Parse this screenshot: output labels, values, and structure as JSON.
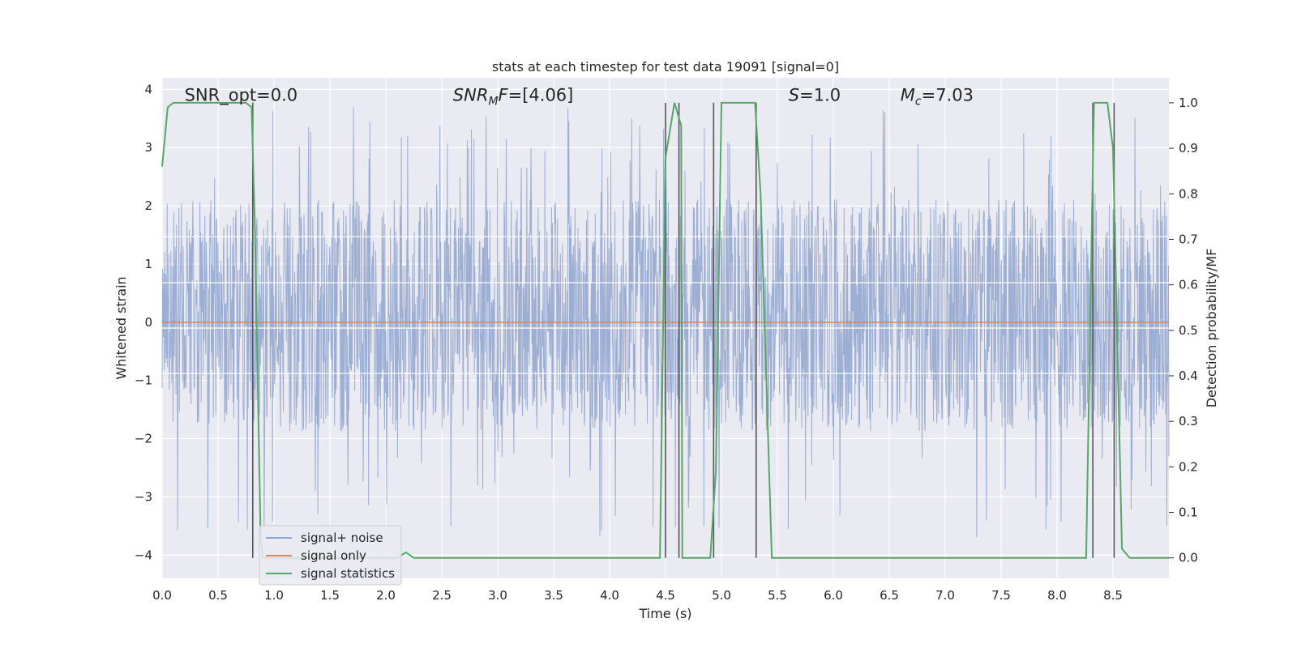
{
  "chart_data": {
    "type": "line",
    "title": "stats at each timestep for test data 19091 [signal=0]",
    "xlabel": "Time (s)",
    "ylabel_left": "Whitened strain",
    "ylabel_right": "Detection probability/MF",
    "xlim": [
      0.0,
      9.0
    ],
    "ylim_left": [
      -4.4,
      4.2
    ],
    "ylim_right": [
      -0.045,
      1.055
    ],
    "grid": true,
    "legend_position": "lower-left",
    "xticks": [
      0.0,
      0.5,
      1.0,
      1.5,
      2.0,
      2.5,
      3.0,
      3.5,
      4.0,
      4.5,
      5.0,
      5.5,
      6.0,
      6.5,
      7.0,
      7.5,
      8.0,
      8.5
    ],
    "xtick_labels": [
      "0.0",
      "0.5",
      "1.0",
      "1.5",
      "2.0",
      "2.5",
      "3.0",
      "3.5",
      "4.0",
      "4.5",
      "5.0",
      "5.5",
      "6.0",
      "6.5",
      "7.0",
      "7.5",
      "8.0",
      "8.5"
    ],
    "yticks_left": [
      4,
      3,
      2,
      1,
      0,
      -1,
      -2,
      -3,
      -4
    ],
    "ytick_labels_left": [
      "4",
      "3",
      "2",
      "1",
      "0",
      "−1",
      "−2",
      "−3",
      "−4"
    ],
    "yticks_right": [
      1.0,
      0.9,
      0.8,
      0.7,
      0.6,
      0.5,
      0.4,
      0.3,
      0.2,
      0.1,
      0.0
    ],
    "ytick_labels_right": [
      "1.0",
      "0.9",
      "0.8",
      "0.7",
      "0.6",
      "0.5",
      "0.4",
      "0.3",
      "0.2",
      "0.1",
      "0.0"
    ],
    "annotations": [
      {
        "text": "SNR_opt=0.0",
        "x": 0.2,
        "y": 3.9
      },
      {
        "text": "SNR_MF=[4.06]",
        "x": 2.6,
        "y": 3.9
      },
      {
        "text": "S=1.0",
        "x": 5.6,
        "y": 3.9
      },
      {
        "text": "M_c=7.03",
        "x": 6.6,
        "y": 3.9
      }
    ],
    "series": [
      {
        "name": "signal+ noise",
        "axis": "left",
        "color": "#8fa3ce",
        "kind": "noise",
        "approx_range": [
          -3.9,
          3.8
        ],
        "typical_range": [
          -1.8,
          2.0
        ]
      },
      {
        "name": "signal only",
        "axis": "left",
        "color": "#dd8452",
        "x": [
          0.0,
          9.0
        ],
        "y": [
          0.0,
          0.0
        ]
      },
      {
        "name": "signal statistics",
        "axis": "right",
        "color": "#55a868",
        "x": [
          0.0,
          0.05,
          0.1,
          0.5,
          0.75,
          0.8,
          0.83,
          0.88,
          0.9,
          2.1,
          2.18,
          2.25,
          4.45,
          4.5,
          4.58,
          4.64,
          4.65,
          4.7,
          4.9,
          4.95,
          5.0,
          5.3,
          5.35,
          5.45,
          8.26,
          8.33,
          8.38,
          8.45,
          8.5,
          8.58,
          8.65,
          9.0
        ],
        "y": [
          0.86,
          0.99,
          1.0,
          1.0,
          1.0,
          0.99,
          0.72,
          0.05,
          0.0,
          0.0,
          0.012,
          0.0,
          0.0,
          0.88,
          1.0,
          0.95,
          0.0,
          0.0,
          0.0,
          0.19,
          1.0,
          1.0,
          0.8,
          0.0,
          0.0,
          1.0,
          1.0,
          1.0,
          0.9,
          0.02,
          0.0,
          0.0
        ]
      }
    ],
    "vertical_lines": {
      "color": "#555555",
      "x": [
        0.81,
        4.5,
        4.62,
        4.93,
        5.31,
        8.32,
        8.51
      ]
    },
    "horizontal_lines_left": [
      1.47,
      0.68,
      -0.1,
      -0.88
    ]
  },
  "legend": {
    "items": [
      {
        "label": "signal+ noise",
        "color": "#8fa3ce"
      },
      {
        "label": "signal only",
        "color": "#dd8452"
      },
      {
        "label": "signal statistics",
        "color": "#55a868"
      }
    ]
  }
}
